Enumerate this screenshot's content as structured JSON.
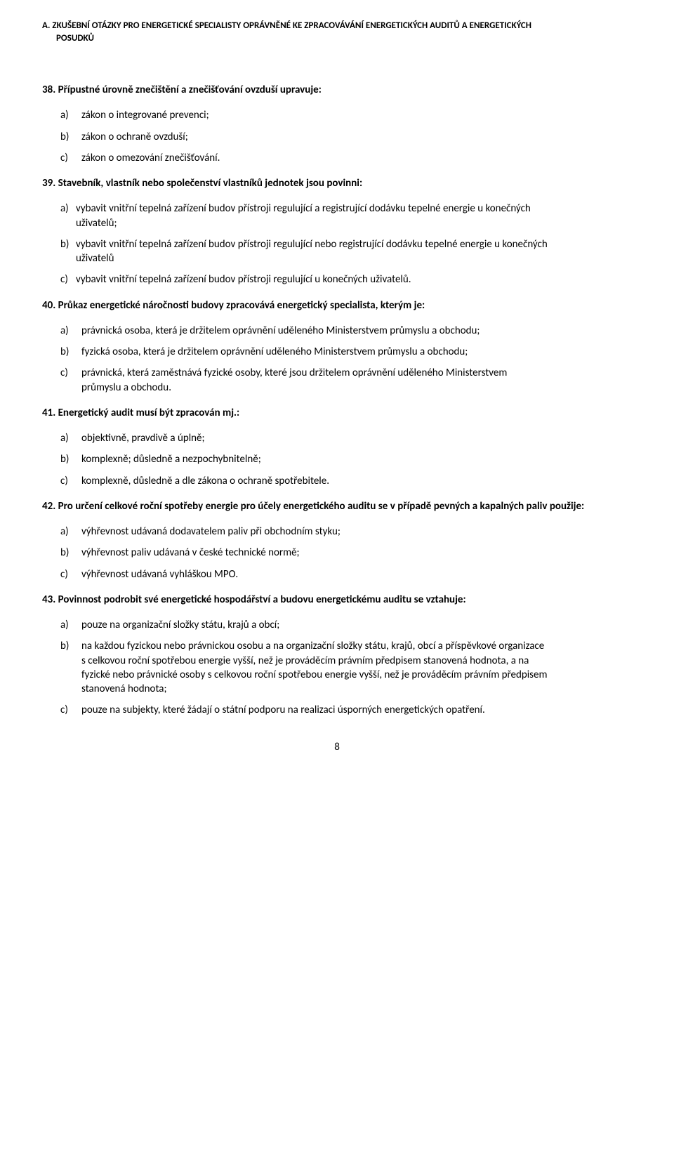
{
  "header": {
    "line1": "A. ZKUŠEBNÍ OTÁZKY PRO ENERGETICKÉ SPECIALISTY OPRÁVNĚNÉ KE ZPRACOVÁVÁNÍ ENERGETICKÝCH AUDITŮ A ENERGETICKÝCH",
    "line2": "POSUDKŮ"
  },
  "questions": [
    {
      "title": "38. Přípustné úrovně znečištění a znečišťování ovzduší upravuje:",
      "tight": false,
      "options": [
        {
          "letter": "a)",
          "text": "zákon o integrované prevenci;"
        },
        {
          "letter": "b)",
          "text": "zákon o ochraně ovzduší;"
        },
        {
          "letter": "c)",
          "text": "zákon o omezování znečišťování."
        }
      ]
    },
    {
      "title": "39. Stavebník, vlastník nebo společenství vlastníků jednotek jsou povinni:",
      "tight": true,
      "options": [
        {
          "letter": "a)",
          "text": "vybavit vnitřní tepelná zařízení budov přístroji regulující a registrující dodávku tepelné energie u konečných uživatelů;"
        },
        {
          "letter": "b)",
          "text": "vybavit vnitřní tepelná zařízení budov přístroji regulující nebo registrující dodávku tepelné energie u konečných uživatelů"
        },
        {
          "letter": "c)",
          "text": "vybavit vnitřní tepelná zařízení budov přístroji regulující u konečných uživatelů."
        }
      ]
    },
    {
      "title": "40. Průkaz energetické náročnosti budovy zpracovává energetický specialista, kterým je:",
      "tight": false,
      "options": [
        {
          "letter": "a)",
          "text": "právnická osoba, která je držitelem oprávnění uděleného Ministerstvem průmyslu a obchodu;"
        },
        {
          "letter": "b)",
          "text": "fyzická osoba, která je držitelem oprávnění uděleného Ministerstvem průmyslu a obchodu;"
        },
        {
          "letter": "c)",
          "text": "právnická, která zaměstnává fyzické osoby, které jsou držitelem oprávnění uděleného Ministerstvem průmyslu a obchodu."
        }
      ]
    },
    {
      "title": "41. Energetický audit musí být zpracován mj.:",
      "tight": false,
      "options": [
        {
          "letter": "a)",
          "text": "objektivně, pravdivě a úplně;"
        },
        {
          "letter": "b)",
          "text": "komplexně; důsledně a nezpochybnitelně;"
        },
        {
          "letter": "c)",
          "text": "komplexně, důsledně a dle zákona o ochraně spotřebitele."
        }
      ]
    },
    {
      "title": "42. Pro určení celkové roční spotřeby energie pro účely energetického auditu se v případě pevných a kapalných paliv použije:",
      "tight": false,
      "options": [
        {
          "letter": "a)",
          "text": "výhřevnost udávaná dodavatelem paliv při obchodním styku;"
        },
        {
          "letter": "b)",
          "text": "výhřevnost paliv udávaná v české technické normě;"
        },
        {
          "letter": "c)",
          "text": " výhřevnost udávaná vyhláškou MPO."
        }
      ]
    },
    {
      "title": "43. Povinnost podrobit své energetické hospodářství a budovu energetickému auditu se vztahuje:",
      "tight": false,
      "options": [
        {
          "letter": "a)",
          "text": "pouze na organizační složky státu, krajů a obcí;"
        },
        {
          "letter": "b)",
          "text": "na každou fyzickou nebo právnickou osobu a na organizační složky státu, krajů, obcí a příspěvkové organizace s celkovou roční spotřebou energie vyšší, než je prováděcím právním předpisem stanovená hodnota, a na fyzické nebo právnické osoby s celkovou roční spotřebou energie vyšší, než je prováděcím právním předpisem stanovená hodnota;"
        },
        {
          "letter": "c)",
          "text": "pouze na subjekty, které žádají o státní podporu na realizaci úsporných energetických opatření."
        }
      ]
    }
  ],
  "pageNumber": "8"
}
